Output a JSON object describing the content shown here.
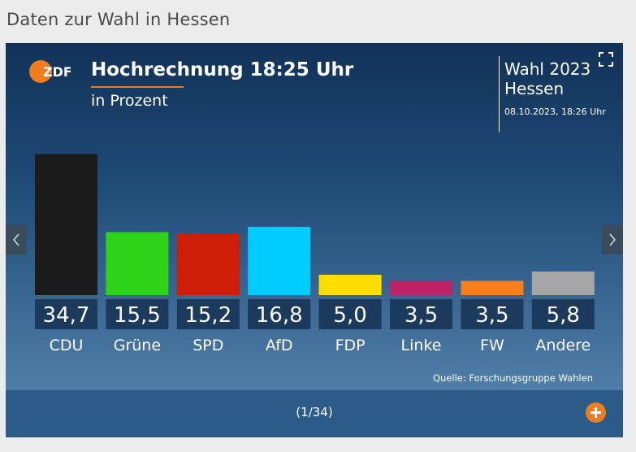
{
  "page": {
    "heading": "Daten zur Wahl in Hessen"
  },
  "header": {
    "logo_text": "ZDF",
    "title": "Hochrechnung 18:25 Uhr",
    "subtitle": "in Prozent",
    "election_line1": "Wahl 2023",
    "election_line2": "Hessen",
    "timestamp": "08.10.2023, 18:26 Uhr"
  },
  "footer": {
    "source": "Quelle: Forschungsgruppe Wahlen",
    "pager": "(1/34)"
  },
  "colors": {
    "accent": "#f07d1d",
    "value_box": "#1c3a5c"
  },
  "icons": {
    "fullscreen": "fullscreen-icon",
    "prev": "chevron-left-icon",
    "next": "chevron-right-icon",
    "more": "plus-icon"
  },
  "chart_data": {
    "type": "bar",
    "title": "Hochrechnung 18:25 Uhr",
    "ylabel": "in Prozent",
    "categories": [
      "CDU",
      "Grüne",
      "SPD",
      "AfD",
      "FDP",
      "Linke",
      "FW",
      "Andere"
    ],
    "values": [
      34.7,
      15.5,
      15.2,
      16.8,
      5.0,
      3.5,
      3.5,
      5.8
    ],
    "value_labels": [
      "34,7",
      "15,5",
      "15,2",
      "16,8",
      "5,0",
      "3,5",
      "3,5",
      "5,8"
    ],
    "colors": [
      "#1b1b1b",
      "#2ed319",
      "#cf1e07",
      "#00ccff",
      "#ffdd00",
      "#bb2366",
      "#f97e1c",
      "#a5a5a5"
    ],
    "ylim": [
      0,
      35
    ],
    "grid": false,
    "legend": "none"
  }
}
